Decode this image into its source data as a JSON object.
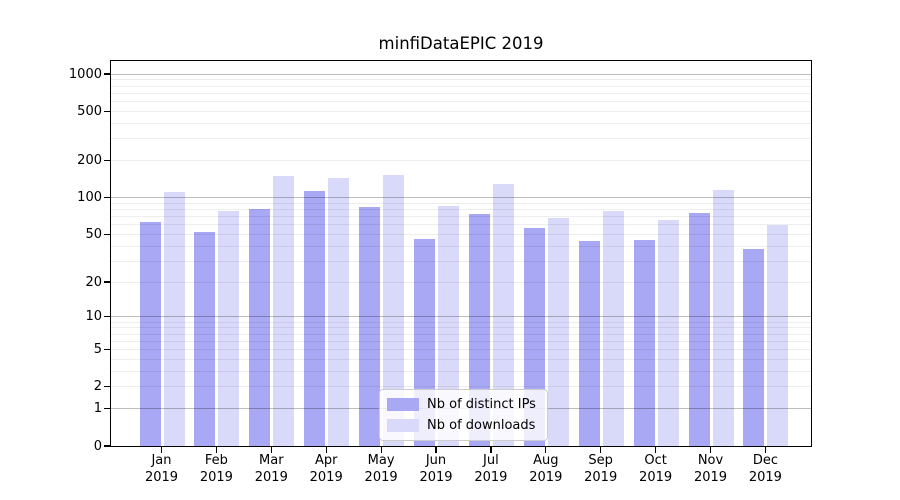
{
  "title": "minfiDataEPIC 2019",
  "chart_data": {
    "type": "bar",
    "title": "minfiDataEPIC 2019",
    "categories": [
      "Jan 2019",
      "Feb 2019",
      "Mar 2019",
      "Apr 2019",
      "May 2019",
      "Jun 2019",
      "Jul 2019",
      "Aug 2019",
      "Sep 2019",
      "Oct 2019",
      "Nov 2019",
      "Dec 2019"
    ],
    "series": [
      {
        "name": "Nb of distinct IPs",
        "color": "#a8a8f4",
        "values": [
          63,
          52,
          80,
          113,
          83,
          46,
          73,
          56,
          44,
          45,
          75,
          38
        ]
      },
      {
        "name": "Nb of downloads",
        "color": "#d9d9f9",
        "values": [
          110,
          78,
          150,
          143,
          153,
          86,
          129,
          68,
          77,
          66,
          115,
          60
        ]
      }
    ],
    "yscale": "log1p",
    "yticks": [
      0,
      1,
      2,
      5,
      10,
      20,
      50,
      100,
      200,
      500,
      1000
    ],
    "ylim": [
      0,
      1100
    ],
    "xlabel": "",
    "ylabel": "",
    "grid": "both",
    "grid_major_color": "#bdbdbd",
    "grid_minor_color": "#ededed",
    "legend": {
      "position": "lower center",
      "entries": [
        "Nb of distinct IPs",
        "Nb of downloads"
      ]
    }
  }
}
